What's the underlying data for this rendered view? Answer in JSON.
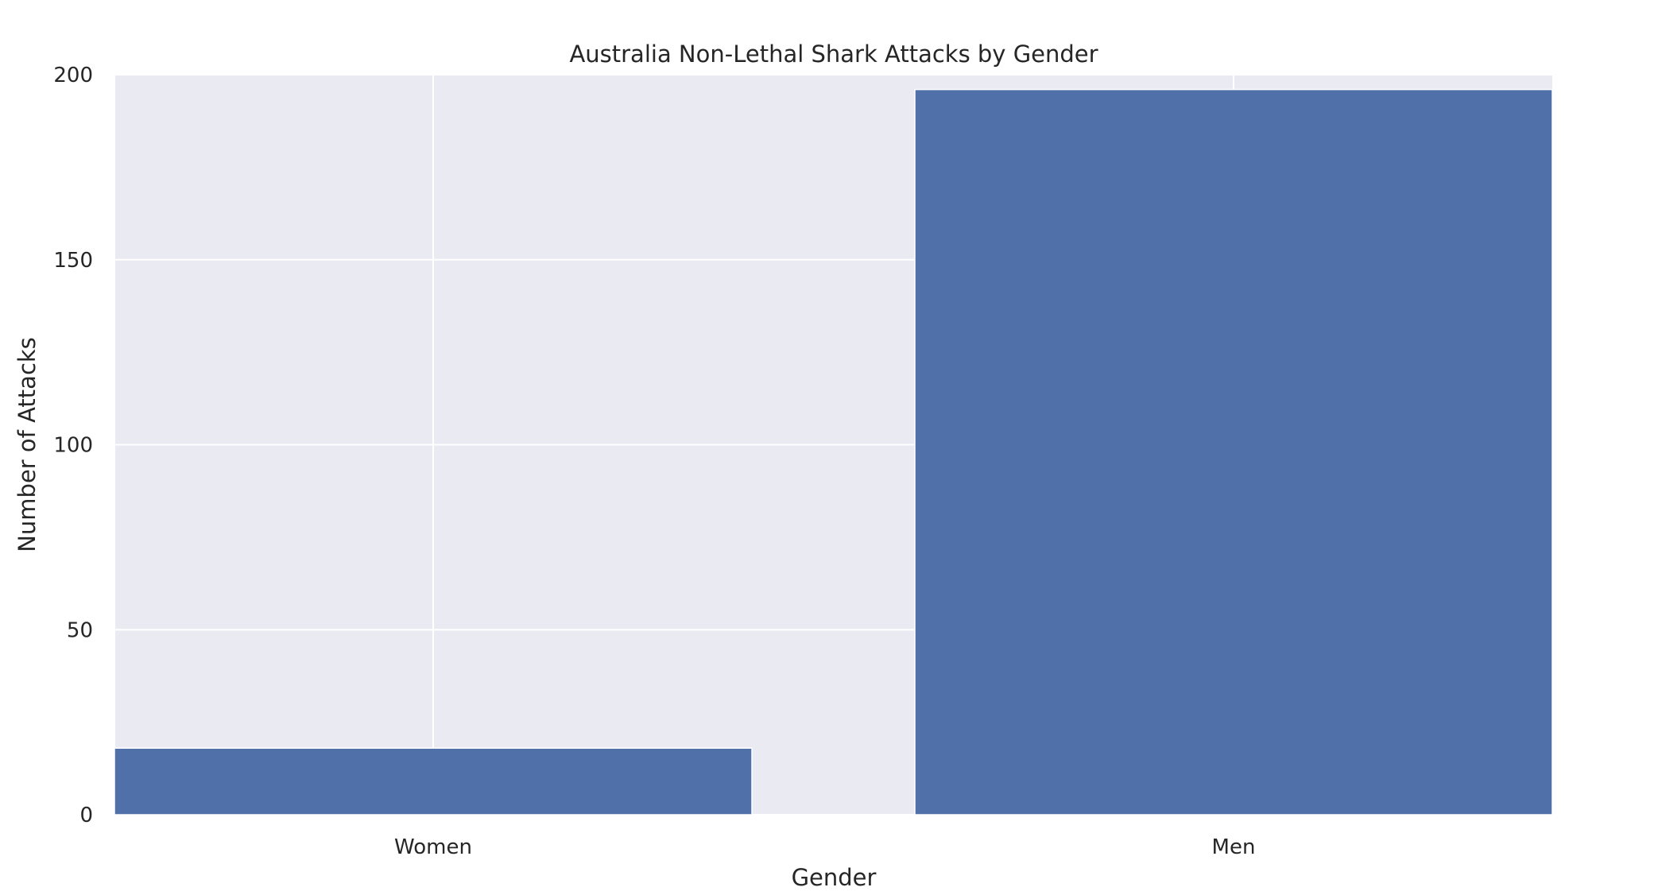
{
  "chart_data": {
    "type": "bar",
    "title": "Australia Non-Lethal Shark Attacks by Gender",
    "xlabel": "Gender",
    "ylabel": "Number of Attacks",
    "categories": [
      "Women",
      "Men"
    ],
    "values": [
      18,
      196
    ],
    "ylim": [
      0,
      200
    ],
    "yticks": [
      "0",
      "50",
      "100",
      "150",
      "200"
    ],
    "grid": true,
    "legend": "none",
    "colors": {
      "bar": "#5070aa",
      "plot_background": "#eaeaf2",
      "grid": "#ffffff",
      "text": "#262626"
    }
  }
}
